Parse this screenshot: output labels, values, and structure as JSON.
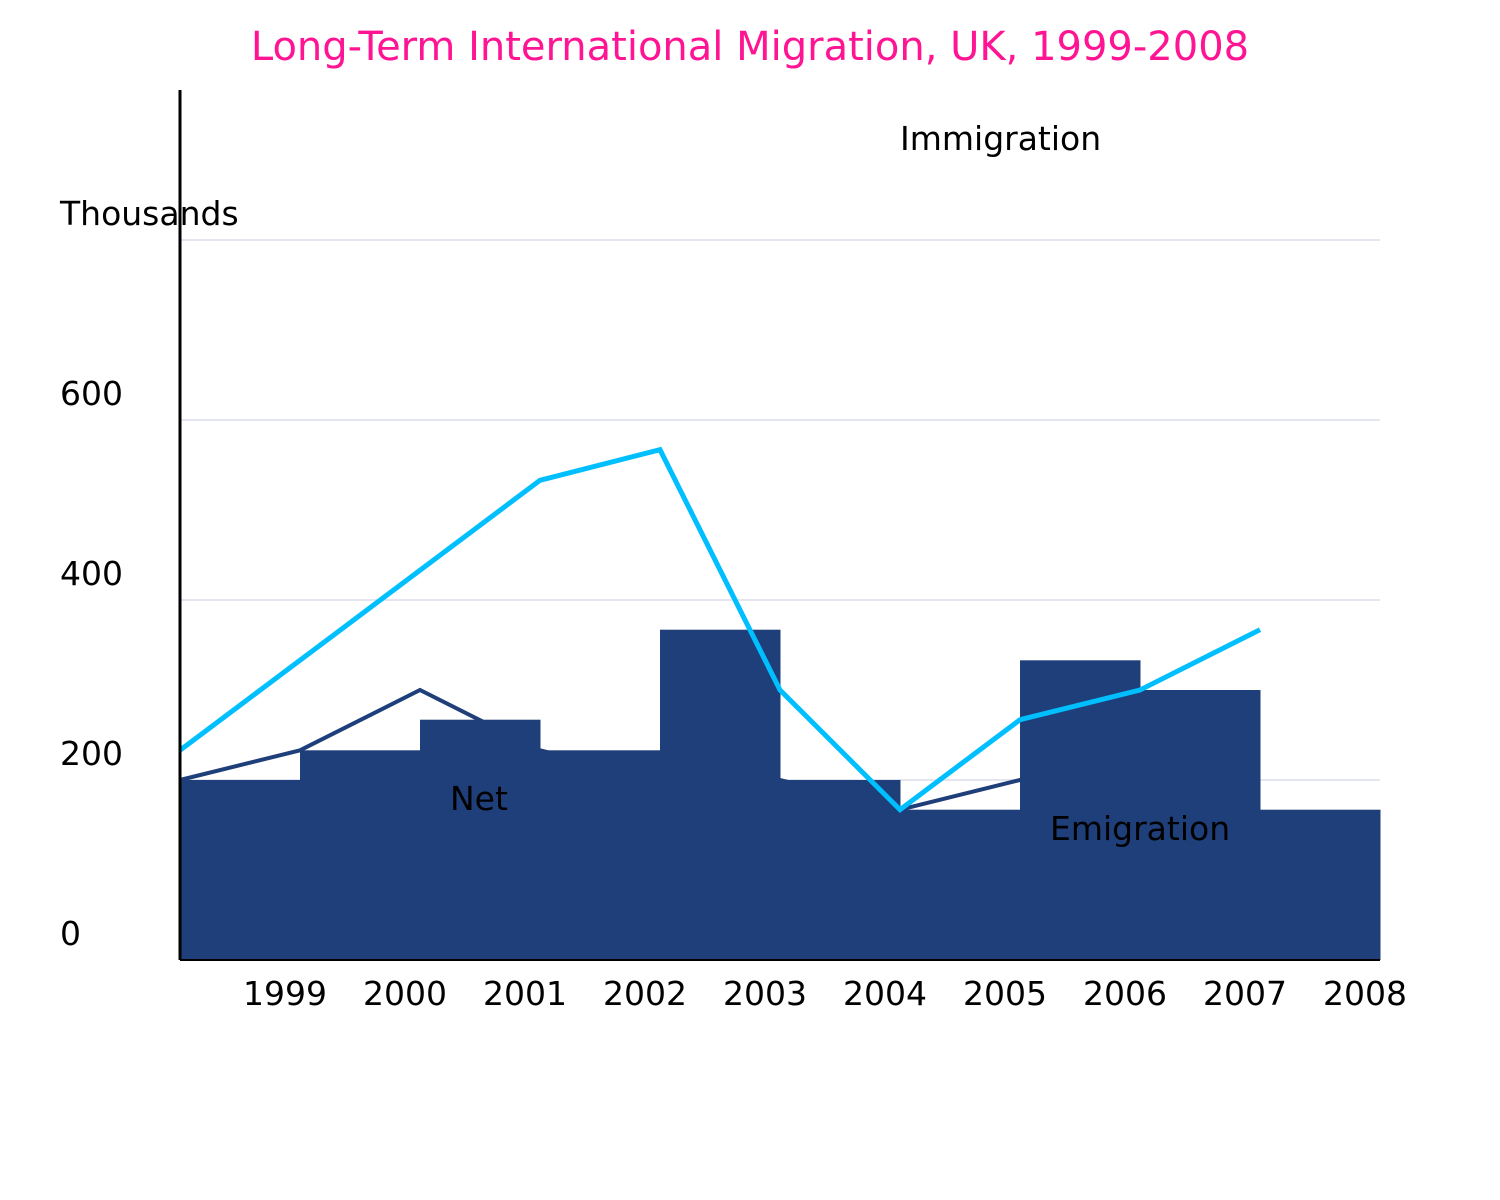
{
  "colors": {
    "title": "#ff1493",
    "bars": "#1f3f7a",
    "immigration_line": "#00bfff",
    "net_line": "#1f3f7a",
    "grid": "#e3e6f0",
    "axis": "#000000"
  },
  "chart_data": {
    "type": "bar",
    "title": "Long-Term International Migration, UK, 1999-2008",
    "ylabel": "Thousands",
    "xlabel": "",
    "ylim": [
      0,
      800
    ],
    "yticks": [
      0,
      200,
      400,
      600
    ],
    "grid_y": [
      200,
      400,
      600,
      800
    ],
    "categories": [
      "1999",
      "2000",
      "2001",
      "2002",
      "2003",
      "2004",
      "2005",
      "2006",
      "2007",
      "2008"
    ],
    "series": [
      {
        "name": "Emigration",
        "kind": "bar",
        "values": [
          200,
          233,
          267,
          233,
          367,
          200,
          167,
          333,
          300,
          167
        ]
      },
      {
        "name": "Immigration",
        "kind": "line",
        "values": [
          233,
          333,
          433,
          533,
          567,
          300,
          167,
          267,
          300,
          367
        ]
      },
      {
        "name": "Net",
        "kind": "line",
        "values": [
          200,
          233,
          300,
          233,
          200,
          200,
          167,
          200,
          233,
          233
        ]
      }
    ],
    "annotations": {
      "immigration": "Immigration",
      "net": "Net",
      "emigration": "Emigration"
    }
  }
}
